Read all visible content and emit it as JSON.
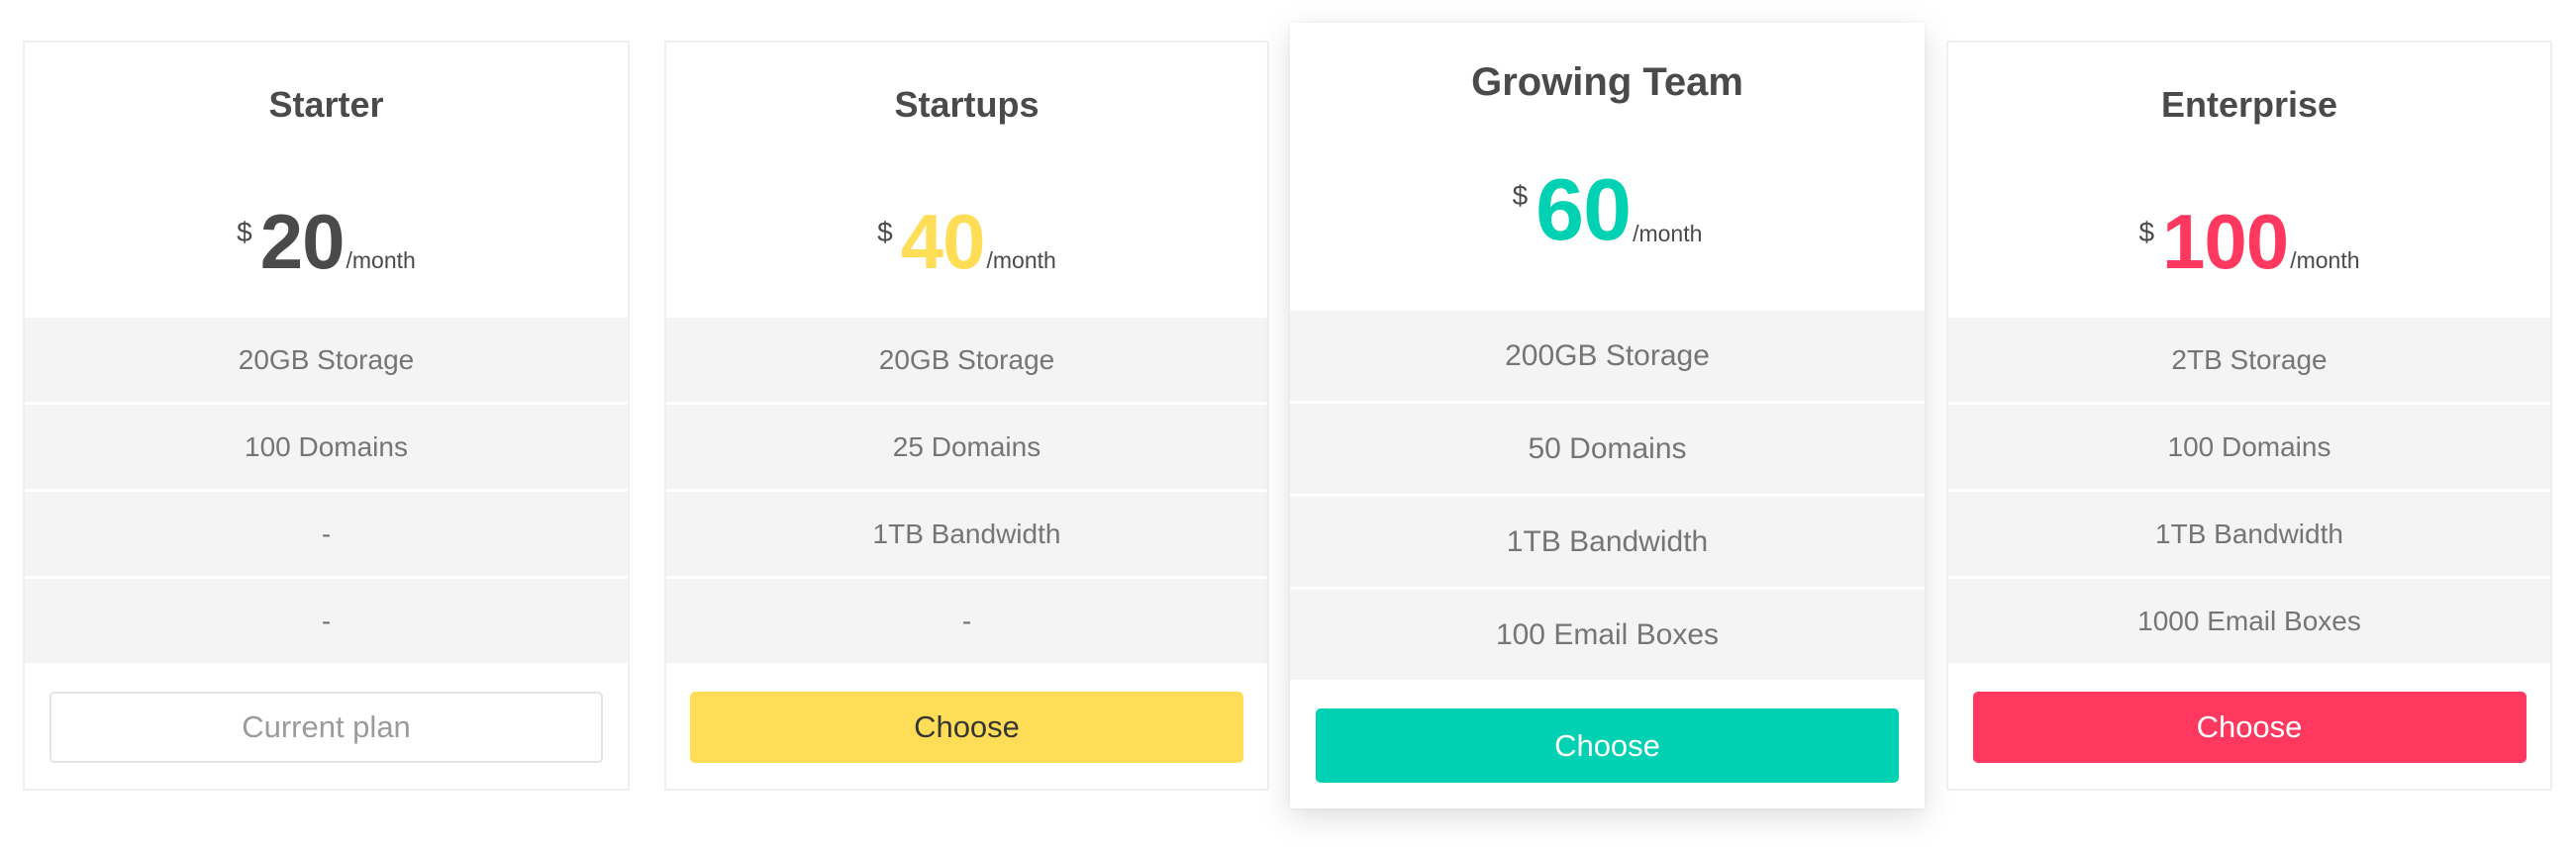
{
  "plans": [
    {
      "name": "Starter",
      "currency": "$",
      "price": "20",
      "period": "/month",
      "color": "#4a4a4a",
      "features": [
        "20GB Storage",
        "100 Domains",
        "-",
        "-"
      ],
      "button": {
        "label": "Current plan",
        "bg": "#ffffff",
        "fg": "#9b9b9b",
        "border": "#e4e4e4"
      }
    },
    {
      "name": "Startups",
      "currency": "$",
      "price": "40",
      "period": "/month",
      "color": "#ffdd57",
      "features": [
        "20GB Storage",
        "25 Domains",
        "1TB Bandwidth",
        "-"
      ],
      "button": {
        "label": "Choose",
        "bg": "#ffdd57",
        "fg": "#363636",
        "border": "#ffdd57"
      }
    },
    {
      "name": "Growing Team",
      "currency": "$",
      "price": "60",
      "period": "/month",
      "color": "#00d1b2",
      "features": [
        "200GB Storage",
        "50 Domains",
        "1TB Bandwidth",
        "100 Email Boxes"
      ],
      "button": {
        "label": "Choose",
        "bg": "#00d1b2",
        "fg": "#ffffff",
        "border": "#00d1b2"
      }
    },
    {
      "name": "Enterprise",
      "currency": "$",
      "price": "100",
      "period": "/month",
      "color": "#ff3860",
      "features": [
        "2TB Storage",
        "100 Domains",
        "1TB Bandwidth",
        "1000 Email Boxes"
      ],
      "button": {
        "label": "Choose",
        "bg": "#ff3860",
        "fg": "#ffffff",
        "border": "#ff3860"
      }
    }
  ]
}
